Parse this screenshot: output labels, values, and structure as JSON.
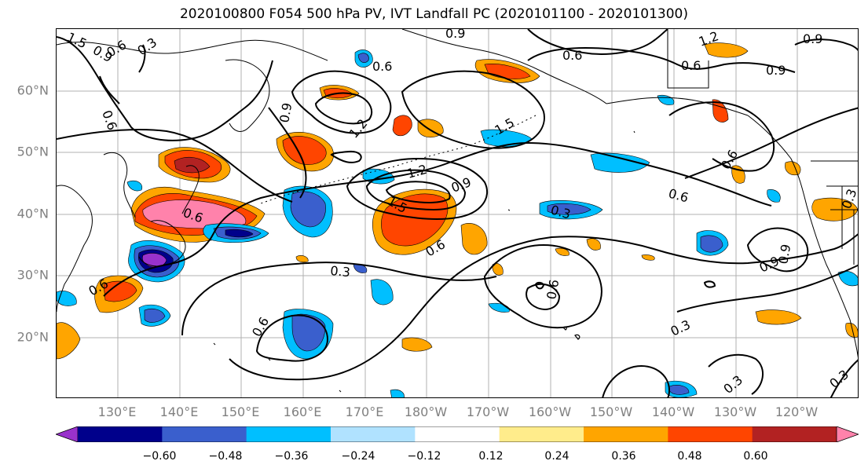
{
  "title": "2020100800 F054 500 hPa PV, IVT Landfall PC (2020101100 - 2020101300)",
  "map": {
    "lat_labels": [
      "60°N",
      "50°N",
      "40°N",
      "30°N",
      "20°N"
    ],
    "lon_labels": [
      "130°E",
      "140°E",
      "150°E",
      "160°E",
      "170°E",
      "180°W",
      "170°W",
      "160°W",
      "150°W",
      "140°W",
      "130°W",
      "120°W"
    ],
    "contour_labels": [
      "1.5",
      "0.9",
      "0.6",
      "0.3",
      "0.6",
      "0.9",
      "0.6",
      "0.6",
      "0.9",
      "1.2",
      "0.9",
      "0.6",
      "0.9",
      "1.2",
      "1.5",
      "1.2",
      "1.5",
      "0.9",
      "0.6",
      "0.3",
      "0.6",
      "0.9",
      "0.3",
      "0.6",
      "0.6",
      "0.3",
      "0.9",
      "0.6",
      "0.3",
      "0.3",
      "0.3",
      "0.6",
      "0.6"
    ],
    "grid": true,
    "coastlines": true
  },
  "colorbar": {
    "ticks": [
      "−0.60",
      "−0.48",
      "−0.36",
      "−0.24",
      "−0.12",
      "0.12",
      "0.24",
      "0.36",
      "0.48",
      "0.60"
    ],
    "colors": [
      "#9932cc",
      "#00008b",
      "#3a5fcd",
      "#00bfff",
      "#b0e2ff",
      "#ffffff",
      "#ffec8b",
      "#ffa500",
      "#ff4500",
      "#b22222",
      "#ff82ab"
    ],
    "extend": "both"
  }
}
